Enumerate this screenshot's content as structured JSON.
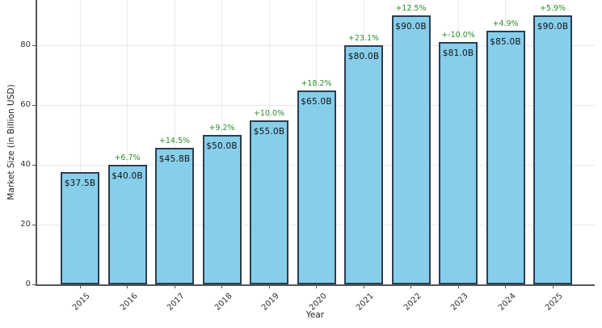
{
  "chart_data": {
    "type": "bar",
    "title": "",
    "xlabel": "Year",
    "ylabel": "Market Size (in Billion USD)",
    "categories": [
      "2015",
      "2016",
      "2017",
      "2018",
      "2019",
      "2020",
      "2021",
      "2022",
      "2023",
      "2024",
      "2025"
    ],
    "values": [
      37.5,
      40.0,
      45.8,
      50.0,
      55.0,
      65.0,
      80.0,
      90.0,
      81.0,
      85.0,
      90.0
    ],
    "bar_value_labels": [
      "$37.5B",
      "$40.0B",
      "$45.8B",
      "$50.0B",
      "$55.0B",
      "$65.0B",
      "$80.0B",
      "$90.0B",
      "$81.0B",
      "$85.0B",
      "$90.0B"
    ],
    "growth_labels": [
      null,
      "+6.7%",
      "+14.5%",
      "+9.2%",
      "+10.0%",
      "+18.2%",
      "+23.1%",
      "+12.5%",
      "+-10.0%",
      "+4.9%",
      "+5.9%"
    ],
    "yticks": [
      0,
      20,
      40,
      60,
      80
    ],
    "ylim": [
      0,
      95
    ],
    "grid": true,
    "legend_position": "none",
    "x_tick_rotation_deg": 45,
    "colors": {
      "bar_fill": "#87CEEB",
      "bar_edge": "#2c3e50",
      "growth_label": "#2e8b2e",
      "grid_line": "#e8e8e8",
      "axis_line": "#555555",
      "tick_text": "#333333",
      "value_text": "#111111",
      "background": "#ffffff"
    }
  }
}
